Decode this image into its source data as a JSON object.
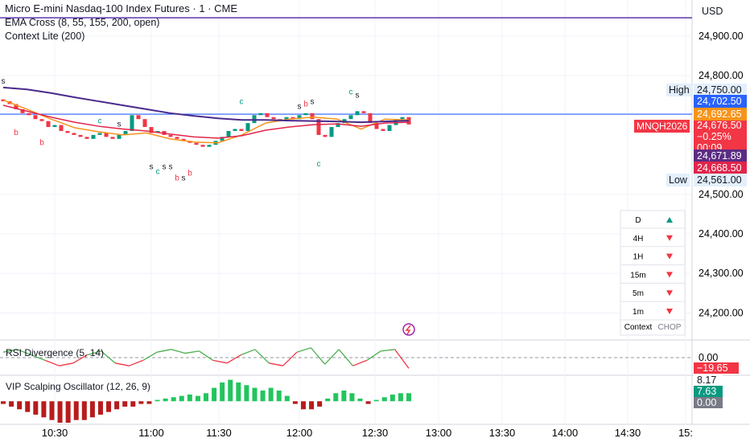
{
  "header": {
    "symbol": "Micro E-mini Nasdaq-100 Index Futures · 1 · CME",
    "indicators": [
      "EMA Cross (8, 55, 155, 200, open)",
      "Context Lite (200)"
    ],
    "currency": "USD"
  },
  "price_axis": {
    "ylim": [
      24991,
      24138
    ],
    "ticks": [
      {
        "value": 24900,
        "label": "24,900.00"
      },
      {
        "value": 24800,
        "label": "24,800.00"
      },
      {
        "value": 24500,
        "label": "24,500.00"
      },
      {
        "value": 24400,
        "label": "24,400.00"
      },
      {
        "value": 24300,
        "label": "24,300.00"
      },
      {
        "value": 24200,
        "label": "24,200.00"
      }
    ]
  },
  "price_labels": [
    {
      "name": "High",
      "value": 24750,
      "label": "24,750.00",
      "color": "#e3effd"
    },
    {
      "value": 24702.5,
      "label": "24,702.50",
      "color": "#2962ff"
    },
    {
      "value": 24692.65,
      "label": "24,692.65",
      "color": "#f7931a"
    },
    {
      "value": 24671.89,
      "label": "24,671.89",
      "color": "#5b2c83"
    },
    {
      "value": 24668.5,
      "label": "24,668.50",
      "color": "#e0254a"
    },
    {
      "name": "Low",
      "value": 24561,
      "label": "24,561.00",
      "color": "#e3effd"
    }
  ],
  "last": {
    "symbol": "MNQH2026",
    "value": 24676.5,
    "label": "24,676.50",
    "change": "−0.25%",
    "countdown": "00:09",
    "color": "#f23645"
  },
  "top_line": {
    "value": 24946,
    "color": "#5e35b1"
  },
  "candles": {
    "first_open": 24740,
    "up_color": "#089981",
    "down_color": "#f23645",
    "closes": [
      24735,
      24728,
      24715,
      24705,
      24700,
      24690,
      24685,
      24670,
      24675,
      24660,
      24655,
      24650,
      24645,
      24640,
      24650,
      24655,
      24645,
      24640,
      24650,
      24660,
      24700,
      24690,
      24670,
      24655,
      24660,
      24650,
      24645,
      24640,
      24635,
      24630,
      24625,
      24620,
      24625,
      24635,
      24645,
      24660,
      24665,
      24660,
      24680,
      24700,
      24705,
      24695,
      24690,
      24685,
      24695,
      24690,
      24700,
      24705,
      24690,
      24650,
      24645,
      24670,
      24680,
      24690,
      24700,
      24710,
      24705,
      24680,
      24665,
      24660,
      24675,
      24690,
      24695,
      24676.5
    ]
  },
  "emas": [
    {
      "color": "#f7931a",
      "values": [
        24738,
        24715,
        24690,
        24668,
        24658,
        24650,
        24655,
        24640,
        24632,
        24630,
        24650,
        24680,
        24690,
        24695,
        24690,
        24665,
        24690,
        24688
      ]
    },
    {
      "color": "#e0254a",
      "values": [
        24725,
        24710,
        24695,
        24682,
        24672,
        24665,
        24660,
        24652,
        24645,
        24642,
        24648,
        24662,
        24670,
        24676,
        24678,
        24672,
        24680,
        24682
      ]
    },
    {
      "color": "#4a2a8c",
      "values": [
        24770,
        24765,
        24756,
        24745,
        24735,
        24725,
        24715,
        24705,
        24698,
        24692,
        24688,
        24688,
        24686,
        24685,
        24684,
        24682,
        24684,
        24686
      ]
    }
  ],
  "markers": [
    {
      "text": "s",
      "index": 0,
      "price": 24780
    },
    {
      "text": "b",
      "index": 2,
      "price": 24650
    },
    {
      "text": "b",
      "index": 6,
      "price": 24624
    },
    {
      "text": "c",
      "index": 15,
      "price": 24679
    },
    {
      "text": "s",
      "index": 18,
      "price": 24671
    },
    {
      "text": "s",
      "index": 23,
      "price": 24563
    },
    {
      "text": "s",
      "index": 25,
      "price": 24563
    },
    {
      "text": "s",
      "index": 26,
      "price": 24563
    },
    {
      "text": "c",
      "index": 24,
      "price": 24551
    },
    {
      "text": "b",
      "index": 27,
      "price": 24535
    },
    {
      "text": "s",
      "index": 28,
      "price": 24535
    },
    {
      "text": "b",
      "index": 29,
      "price": 24547
    },
    {
      "text": "c",
      "index": 37,
      "price": 24728
    },
    {
      "text": "s",
      "index": 46,
      "price": 24716
    },
    {
      "text": "b",
      "index": 47,
      "price": 24722
    },
    {
      "text": "s",
      "index": 48,
      "price": 24728
    },
    {
      "text": "c",
      "index": 49,
      "price": 24571
    },
    {
      "text": "c",
      "index": 54,
      "price": 24752
    },
    {
      "text": "s",
      "index": 55,
      "price": 24744
    }
  ],
  "context_table": {
    "rows": [
      {
        "tf": "D",
        "trend": "up"
      },
      {
        "tf": "4H",
        "trend": "down"
      },
      {
        "tf": "1H",
        "trend": "down"
      },
      {
        "tf": "15m",
        "trend": "down"
      },
      {
        "tf": "5m",
        "trend": "down"
      },
      {
        "tf": "1m",
        "trend": "down"
      }
    ],
    "footer": [
      "Context",
      "CHOP"
    ]
  },
  "rsi": {
    "title": "RSI Divergence (5, 14)",
    "ylim": [
      -25,
      25
    ],
    "zero": {
      "value": 0,
      "label": "0.00"
    },
    "last": {
      "value": -19.65,
      "label": "−19.65"
    },
    "values": [
      10,
      15,
      5,
      -5,
      -15,
      -10,
      5,
      12,
      -10,
      -15,
      -5,
      10,
      15,
      8,
      12,
      -5,
      -10,
      5,
      15,
      -10,
      -15,
      10,
      18,
      -12,
      15,
      -15,
      -5,
      12,
      15,
      -19.65
    ]
  },
  "oscillator": {
    "title": "VIP Scalping Oscillator (12, 26, 9)",
    "ylim": [
      -8,
      8.17
    ],
    "labels": [
      {
        "value": 8.17,
        "label": "8.17"
      },
      {
        "value": 7.63,
        "label": "7.63"
      },
      {
        "value": 0,
        "label": "0.00"
      }
    ],
    "values": [
      -1,
      -2,
      -3,
      -4,
      -5,
      -6,
      -7,
      -8,
      -8,
      -7,
      -7,
      -6,
      -5,
      -4,
      -3,
      -2,
      -2,
      -1,
      -1,
      0.5,
      1,
      1.5,
      2,
      2.5,
      2,
      3,
      5,
      7,
      8,
      7,
      6,
      5,
      4,
      5,
      4,
      2,
      -1,
      -3,
      -3,
      -2,
      1,
      3,
      4,
      3,
      1,
      -1,
      0.5,
      1.5,
      2.5,
      3,
      3
    ]
  },
  "time_axis": {
    "labels": [
      "10:30",
      "11:00",
      "11:30",
      "12:00",
      "12:30",
      "13:00",
      "13:30",
      "14:00",
      "14:30",
      "15:"
    ]
  }
}
